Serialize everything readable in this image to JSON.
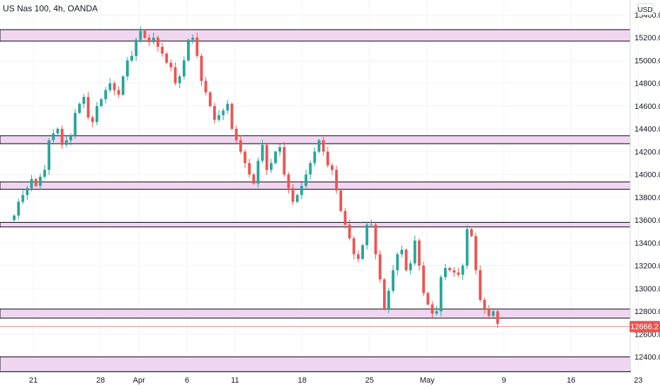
{
  "chart_data": {
    "type": "candlestick",
    "title": "US Nas 100, 4h, OANDA",
    "currency": "USD",
    "colors": {
      "up": "#26a69a",
      "down": "#ef5350",
      "zone_fill": "#f0d6f0",
      "zone_border": "#000000",
      "current_price": "#ef5350",
      "grid": "#f0f3fa"
    },
    "y_axis": {
      "min": 12280,
      "max": 15530,
      "ticks": [
        "15400.0",
        "15200.0",
        "15000.0",
        "14800.0",
        "14600.0",
        "14400.0",
        "14200.0",
        "14000.0",
        "13800.0",
        "13600.0",
        "13400.0",
        "13200.0",
        "13000.0",
        "12800.0",
        "12600.0",
        "12400.0"
      ]
    },
    "x_axis": {
      "start": "Mar 19",
      "end": "May 24",
      "ticks": [
        {
          "label": "21",
          "day": 2
        },
        {
          "label": "28",
          "day": 9
        },
        {
          "label": "Apr",
          "day": 13
        },
        {
          "label": "6",
          "day": 18
        },
        {
          "label": "11",
          "day": 23
        },
        {
          "label": "18",
          "day": 30
        },
        {
          "label": "25",
          "day": 37
        },
        {
          "label": "May",
          "day": 43
        },
        {
          "label": "9",
          "day": 51
        },
        {
          "label": "16",
          "day": 58
        },
        {
          "label": "23",
          "day": 65
        }
      ]
    },
    "zones": [
      {
        "low": 15170,
        "high": 15270
      },
      {
        "low": 14270,
        "high": 14340
      },
      {
        "low": 13870,
        "high": 13935
      },
      {
        "low": 13540,
        "high": 13580
      },
      {
        "low": 12740,
        "high": 12820
      },
      {
        "low": 12270,
        "high": 12400
      }
    ],
    "current_price": 12666.2,
    "current_price_label": "12666.2",
    "closes": [
      13640,
      13760,
      13820,
      13880,
      13960,
      13900,
      13980,
      14040,
      14300,
      14360,
      14400,
      14260,
      14300,
      14340,
      14540,
      14620,
      14680,
      14500,
      14460,
      14600,
      14660,
      14740,
      14800,
      14740,
      14700,
      14860,
      15000,
      15040,
      15180,
      15260,
      15200,
      15160,
      15200,
      15120,
      15060,
      14980,
      14940,
      14800,
      14860,
      15000,
      15180,
      15200,
      15040,
      14820,
      14720,
      14600,
      14480,
      14520,
      14560,
      14620,
      14400,
      14300,
      14200,
      14100,
      14000,
      13920,
      14120,
      14260,
      14040,
      14100,
      14200,
      14240,
      14000,
      13880,
      13760,
      13820,
      13900,
      14000,
      14100,
      14200,
      14300,
      14200,
      14080,
      14040,
      13860,
      13680,
      13560,
      13440,
      13300,
      13260,
      13380,
      13560,
      13560,
      13300,
      13080,
      12820,
      12980,
      13160,
      13300,
      13340,
      13160,
      13220,
      13420,
      13200,
      12960,
      12860,
      12780,
      12800,
      13100,
      13180,
      13160,
      13140,
      13120,
      13200,
      13520,
      13460,
      13160,
      12900,
      12820,
      12760,
      12800,
      12690
    ],
    "bar_width_days": 0.62
  }
}
